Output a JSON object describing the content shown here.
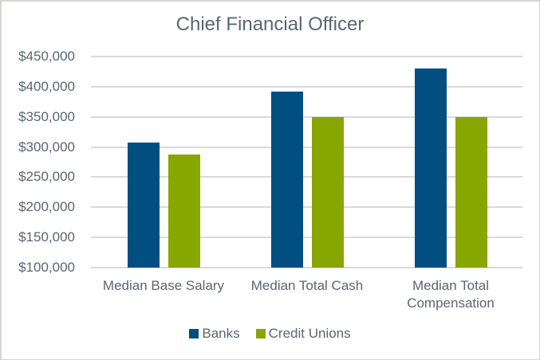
{
  "chart_data": {
    "type": "bar",
    "title": "Chief Financial Officer",
    "categories": [
      "Median Base Salary",
      "Median Total Cash",
      "Median Total Compensation"
    ],
    "category_lines": [
      [
        "Median Base Salary"
      ],
      [
        "Median Total Cash"
      ],
      [
        "Median Total",
        "Compensation"
      ]
    ],
    "series": [
      {
        "name": "Banks",
        "color": "#004f80",
        "values": [
          308000,
          392000,
          430000
        ]
      },
      {
        "name": "Credit Unions",
        "color": "#88a600",
        "values": [
          288000,
          350000,
          350000
        ]
      }
    ],
    "xlabel": "",
    "ylabel": "",
    "ylim": [
      100000,
      450000
    ],
    "yticks": [
      100000,
      150000,
      200000,
      250000,
      300000,
      350000,
      400000,
      450000
    ],
    "ytick_labels": [
      "$100,000",
      "$150,000",
      "$200,000",
      "$250,000",
      "$300,000",
      "$350,000",
      "$400,000",
      "$450,000"
    ],
    "grid": true,
    "legend_position": "bottom"
  },
  "legend": {
    "banks_label": "Banks",
    "credit_unions_label": "Credit Unions"
  }
}
